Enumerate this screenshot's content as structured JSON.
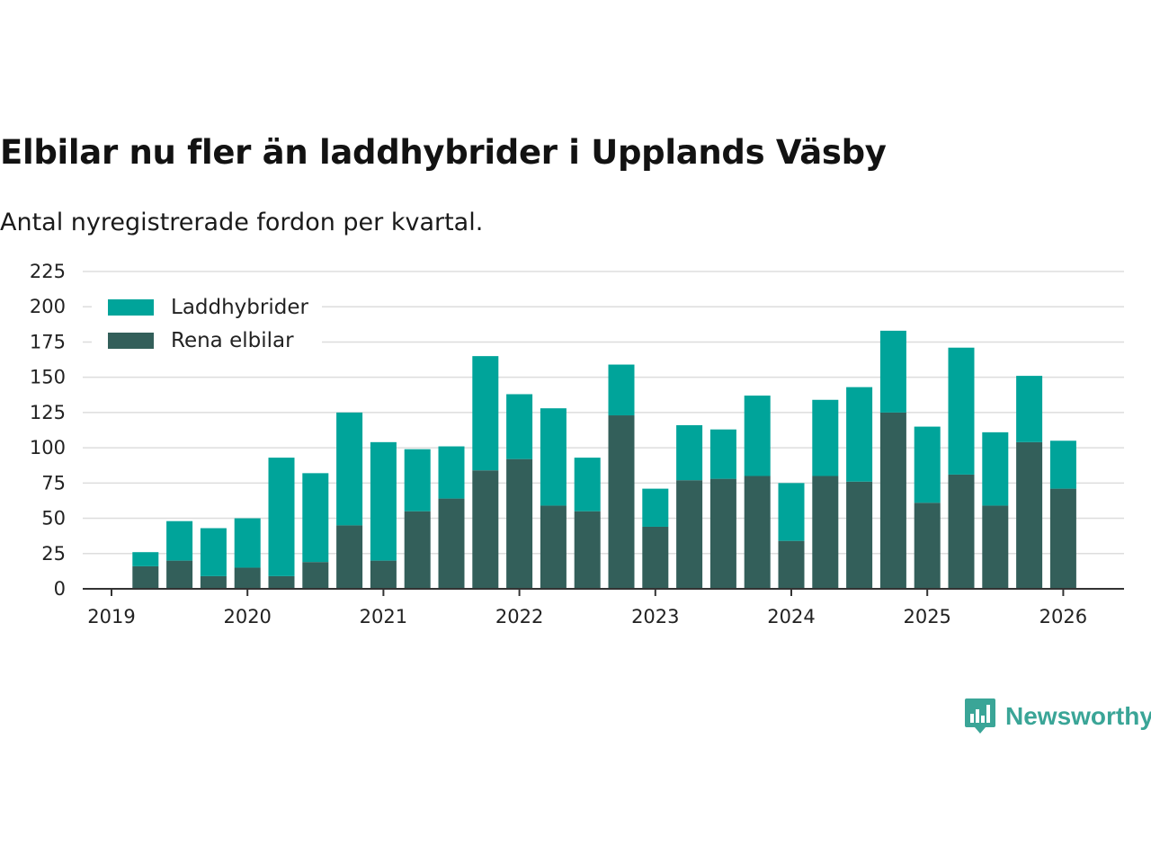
{
  "title": "Elbilar nu fler än laddhybrider i Upplands Väsby",
  "subtitle": "Antal nyregistrerade fordon per kvartal.",
  "brand": {
    "name": "Newsworthy",
    "icon": "newsworthy-logo-icon"
  },
  "colors": {
    "laddhybrider": "#00a49a",
    "elbilar": "#335f5a",
    "grid": "#dddddd",
    "axis": "#333333"
  },
  "chart_data": {
    "type": "bar",
    "stacked": true,
    "ylim": [
      0,
      225
    ],
    "yticks": [
      0,
      25,
      50,
      75,
      100,
      125,
      150,
      175,
      200,
      225
    ],
    "xticks": [
      "2019",
      "2020",
      "2021",
      "2022",
      "2023",
      "2024",
      "2025",
      "2026"
    ],
    "legend_position": "top-left",
    "categories": [
      "2019 Q2",
      "2019 Q3",
      "2019 Q4",
      "2020 Q1",
      "2020 Q2",
      "2020 Q3",
      "2020 Q4",
      "2021 Q1",
      "2021 Q2",
      "2021 Q3",
      "2021 Q4",
      "2022 Q1",
      "2022 Q2",
      "2022 Q3",
      "2022 Q4",
      "2023 Q1",
      "2023 Q2",
      "2023 Q3",
      "2023 Q4",
      "2024 Q1",
      "2024 Q2",
      "2024 Q3",
      "2024 Q4",
      "2025 Q1",
      "2025 Q2",
      "2025 Q3",
      "2025 Q4",
      "2026 Q1"
    ],
    "series": [
      {
        "name": "Rena elbilar",
        "color": "#335f5a",
        "values": [
          16,
          20,
          9,
          15,
          9,
          19,
          45,
          20,
          55,
          64,
          84,
          92,
          59,
          55,
          123,
          44,
          77,
          78,
          80,
          34,
          80,
          76,
          125,
          61,
          81,
          59,
          104,
          71
        ]
      },
      {
        "name": "Laddhybrider",
        "color": "#00a49a",
        "values": [
          10,
          28,
          34,
          35,
          84,
          63,
          80,
          84,
          44,
          37,
          81,
          46,
          69,
          38,
          36,
          27,
          39,
          35,
          57,
          41,
          54,
          67,
          58,
          54,
          90,
          52,
          47,
          34
        ]
      }
    ]
  }
}
